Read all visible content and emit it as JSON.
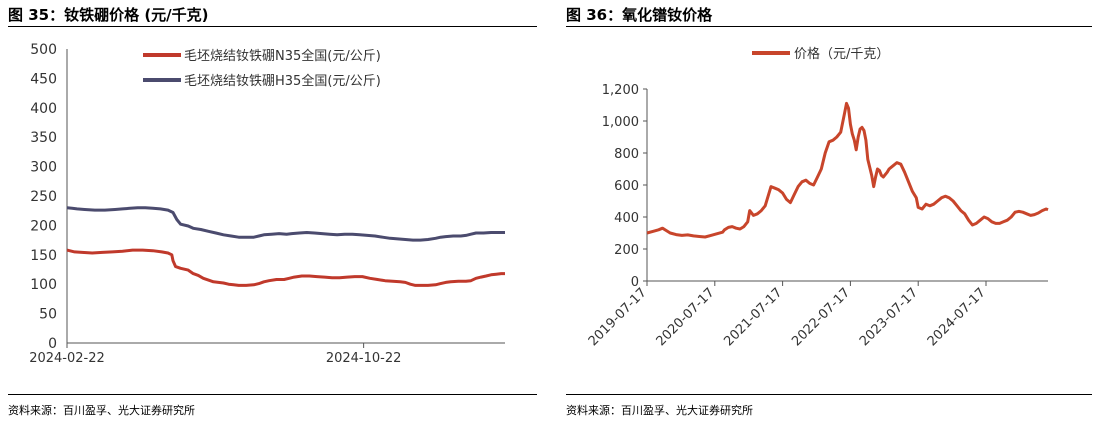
{
  "left": {
    "title": "图 35：钕铁硼价格 (元/千克)",
    "source": "资料来源：百川盈孚、光大证券研究所"
  },
  "right": {
    "title": "图 36：氧化镨钕价格",
    "source": "资料来源：百川盈孚、光大证券研究所"
  },
  "chart_data": [
    {
      "type": "line",
      "title": "",
      "xlabel": "",
      "ylabel": "",
      "ylim": [
        0,
        500
      ],
      "yticks": [
        "0",
        "50",
        "100",
        "150",
        "200",
        "250",
        "300",
        "350",
        "400",
        "450",
        "500"
      ],
      "xticks": [
        "2024-02-22",
        "2024-10-22"
      ],
      "grid": false,
      "legend": "top",
      "series": [
        {
          "name": "毛坯烧结钕铁硼N35全国(元/公斤)",
          "color": "#c0392b",
          "points": [
            [
              0,
              158
            ],
            [
              2,
              157
            ],
            [
              6,
              155
            ],
            [
              12,
              154
            ],
            [
              20,
              153
            ],
            [
              28,
              154
            ],
            [
              36,
              155
            ],
            [
              44,
              156
            ],
            [
              52,
              158
            ],
            [
              60,
              158
            ],
            [
              68,
              157
            ],
            [
              75,
              155
            ],
            [
              80,
              153
            ],
            [
              83,
              150
            ],
            [
              84,
              140
            ],
            [
              86,
              130
            ],
            [
              90,
              127
            ],
            [
              96,
              124
            ],
            [
              100,
              118
            ],
            [
              104,
              115
            ],
            [
              108,
              110
            ],
            [
              112,
              107
            ],
            [
              116,
              104
            ],
            [
              120,
              103
            ],
            [
              124,
              102
            ],
            [
              128,
              100
            ],
            [
              132,
              99
            ],
            [
              136,
              98
            ],
            [
              142,
              98
            ],
            [
              148,
              99
            ],
            [
              152,
              101
            ],
            [
              156,
              104
            ],
            [
              160,
              106
            ],
            [
              166,
              108
            ],
            [
              172,
              108
            ],
            [
              176,
              110
            ],
            [
              180,
              112
            ],
            [
              186,
              114
            ],
            [
              192,
              114
            ],
            [
              198,
              113
            ],
            [
              204,
              112
            ],
            [
              210,
              111
            ],
            [
              216,
              111
            ],
            [
              222,
              112
            ],
            [
              228,
              113
            ],
            [
              234,
              113
            ],
            [
              240,
              110
            ],
            [
              246,
              108
            ],
            [
              252,
              106
            ],
            [
              258,
              105
            ],
            [
              264,
              104
            ],
            [
              268,
              103
            ],
            [
              272,
              100
            ],
            [
              276,
              98
            ],
            [
              280,
              98
            ],
            [
              286,
              98
            ],
            [
              292,
              99
            ],
            [
              296,
              101
            ],
            [
              300,
              103
            ],
            [
              304,
              104
            ],
            [
              310,
              105
            ],
            [
              316,
              105
            ],
            [
              320,
              106
            ],
            [
              324,
              110
            ],
            [
              328,
              112
            ],
            [
              332,
              114
            ],
            [
              336,
              116
            ],
            [
              340,
              117
            ],
            [
              344,
              118
            ],
            [
              347,
              118
            ]
          ]
        },
        {
          "name": "毛坯烧结钕铁硼H35全国(元/公斤)",
          "color": "#4b4b6e",
          "points": [
            [
              0,
              230
            ],
            [
              4,
              229
            ],
            [
              8,
              228
            ],
            [
              14,
              227
            ],
            [
              22,
              226
            ],
            [
              30,
              226
            ],
            [
              38,
              227
            ],
            [
              44,
              228
            ],
            [
              50,
              229
            ],
            [
              56,
              230
            ],
            [
              62,
              230
            ],
            [
              68,
              229
            ],
            [
              74,
              228
            ],
            [
              80,
              226
            ],
            [
              84,
              222
            ],
            [
              87,
              210
            ],
            [
              90,
              202
            ],
            [
              96,
              199
            ],
            [
              100,
              195
            ],
            [
              106,
              193
            ],
            [
              112,
              190
            ],
            [
              118,
              187
            ],
            [
              124,
              184
            ],
            [
              130,
              182
            ],
            [
              136,
              180
            ],
            [
              142,
              180
            ],
            [
              148,
              180
            ],
            [
              152,
              182
            ],
            [
              156,
              184
            ],
            [
              162,
              185
            ],
            [
              168,
              186
            ],
            [
              174,
              185
            ],
            [
              178,
              186
            ],
            [
              184,
              187
            ],
            [
              190,
              188
            ],
            [
              196,
              187
            ],
            [
              202,
              186
            ],
            [
              208,
              185
            ],
            [
              214,
              184
            ],
            [
              220,
              185
            ],
            [
              226,
              185
            ],
            [
              232,
              184
            ],
            [
              238,
              183
            ],
            [
              244,
              182
            ],
            [
              250,
              180
            ],
            [
              256,
              178
            ],
            [
              262,
              177
            ],
            [
              268,
              176
            ],
            [
              274,
              175
            ],
            [
              280,
              175
            ],
            [
              286,
              176
            ],
            [
              292,
              178
            ],
            [
              296,
              180
            ],
            [
              300,
              181
            ],
            [
              306,
              182
            ],
            [
              312,
              182
            ],
            [
              316,
              183
            ],
            [
              320,
              185
            ],
            [
              324,
              187
            ],
            [
              330,
              187
            ],
            [
              336,
              188
            ],
            [
              342,
              188
            ],
            [
              347,
              188
            ]
          ]
        }
      ]
    },
    {
      "type": "line",
      "title": "",
      "xlabel": "",
      "ylabel": "",
      "ylim": [
        0,
        1200
      ],
      "yticks": [
        "0",
        "200",
        "400",
        "600",
        "800",
        "1,000",
        "1,200"
      ],
      "xticks": [
        "2019-07-17",
        "2020-07-17",
        "2021-07-17",
        "2022-07-17",
        "2023-07-17",
        "2024-07-17"
      ],
      "grid": false,
      "legend": "top",
      "series": [
        {
          "name": "价格（元/千克）",
          "color": "#c8452b",
          "points": [
            [
              0,
              300
            ],
            [
              6,
              310
            ],
            [
              12,
              320
            ],
            [
              16,
              330
            ],
            [
              20,
              315
            ],
            [
              24,
              300
            ],
            [
              30,
              290
            ],
            [
              36,
              285
            ],
            [
              42,
              288
            ],
            [
              48,
              282
            ],
            [
              54,
              278
            ],
            [
              60,
              275
            ],
            [
              66,
              285
            ],
            [
              72,
              295
            ],
            [
              78,
              305
            ],
            [
              80,
              320
            ],
            [
              84,
              335
            ],
            [
              88,
              340
            ],
            [
              92,
              330
            ],
            [
              96,
              325
            ],
            [
              100,
              340
            ],
            [
              104,
              370
            ],
            [
              106,
              440
            ],
            [
              110,
              410
            ],
            [
              114,
              420
            ],
            [
              118,
              440
            ],
            [
              122,
              470
            ],
            [
              125,
              530
            ],
            [
              128,
              590
            ],
            [
              132,
              580
            ],
            [
              136,
              570
            ],
            [
              140,
              550
            ],
            [
              144,
              510
            ],
            [
              148,
              490
            ],
            [
              152,
              540
            ],
            [
              156,
              590
            ],
            [
              160,
              620
            ],
            [
              164,
              630
            ],
            [
              168,
              610
            ],
            [
              172,
              600
            ],
            [
              176,
              650
            ],
            [
              180,
              700
            ],
            [
              184,
              800
            ],
            [
              188,
              870
            ],
            [
              192,
              880
            ],
            [
              196,
              900
            ],
            [
              200,
              930
            ],
            [
              204,
              1050
            ],
            [
              206,
              1110
            ],
            [
              208,
              1080
            ],
            [
              210,
              980
            ],
            [
              212,
              920
            ],
            [
              214,
              880
            ],
            [
              216,
              820
            ],
            [
              218,
              900
            ],
            [
              220,
              950
            ],
            [
              222,
              960
            ],
            [
              224,
              940
            ],
            [
              226,
              880
            ],
            [
              228,
              760
            ],
            [
              232,
              660
            ],
            [
              234,
              590
            ],
            [
              236,
              650
            ],
            [
              238,
              700
            ],
            [
              240,
              690
            ],
            [
              242,
              660
            ],
            [
              244,
              650
            ],
            [
              248,
              680
            ],
            [
              250,
              700
            ],
            [
              254,
              720
            ],
            [
              258,
              740
            ],
            [
              262,
              730
            ],
            [
              266,
              680
            ],
            [
              270,
              620
            ],
            [
              274,
              560
            ],
            [
              278,
              520
            ],
            [
              280,
              460
            ],
            [
              284,
              450
            ],
            [
              288,
              480
            ],
            [
              292,
              470
            ],
            [
              296,
              480
            ],
            [
              300,
              500
            ],
            [
              304,
              520
            ],
            [
              308,
              530
            ],
            [
              312,
              520
            ],
            [
              316,
              500
            ],
            [
              320,
              470
            ],
            [
              324,
              440
            ],
            [
              328,
              420
            ],
            [
              332,
              380
            ],
            [
              336,
              350
            ],
            [
              340,
              360
            ],
            [
              344,
              380
            ],
            [
              348,
              400
            ],
            [
              352,
              390
            ],
            [
              356,
              370
            ],
            [
              360,
              360
            ],
            [
              364,
              360
            ],
            [
              368,
              370
            ],
            [
              372,
              380
            ],
            [
              376,
              400
            ],
            [
              380,
              430
            ],
            [
              384,
              435
            ],
            [
              388,
              430
            ],
            [
              392,
              420
            ],
            [
              396,
              410
            ],
            [
              400,
              415
            ],
            [
              404,
              425
            ],
            [
              408,
              440
            ],
            [
              412,
              450
            ],
            [
              414,
              445
            ]
          ]
        }
      ]
    }
  ]
}
